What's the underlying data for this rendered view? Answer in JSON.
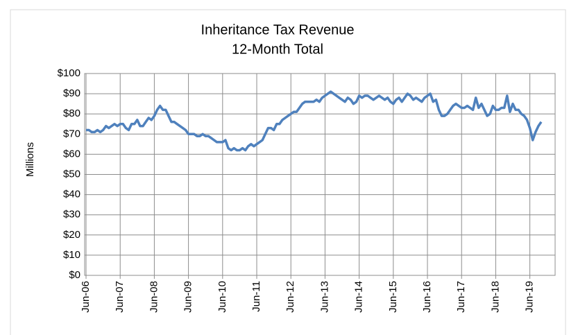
{
  "chart_data": {
    "type": "line",
    "title": "Inheritance Tax Revenue",
    "subtitle": "12-Month Total",
    "y_label": "Millions",
    "categories": [
      "Jun-06",
      null,
      null,
      null,
      null,
      null,
      null,
      null,
      null,
      null,
      null,
      null,
      "Jun-07",
      null,
      null,
      null,
      null,
      null,
      null,
      null,
      null,
      null,
      null,
      null,
      "Jun-08",
      null,
      null,
      null,
      null,
      null,
      null,
      null,
      null,
      null,
      null,
      null,
      "Jun-09",
      null,
      null,
      null,
      null,
      null,
      null,
      null,
      null,
      null,
      null,
      null,
      "Jun-10",
      null,
      null,
      null,
      null,
      null,
      null,
      null,
      null,
      null,
      null,
      null,
      "Jun-11",
      null,
      null,
      null,
      null,
      null,
      null,
      null,
      null,
      null,
      null,
      null,
      "Jun-12",
      null,
      null,
      null,
      null,
      null,
      null,
      null,
      null,
      null,
      null,
      null,
      "Jun-13",
      null,
      null,
      null,
      null,
      null,
      null,
      null,
      null,
      null,
      null,
      null,
      "Jun-14",
      null,
      null,
      null,
      null,
      null,
      null,
      null,
      null,
      null,
      null,
      null,
      "Jun-15",
      null,
      null,
      null,
      null,
      null,
      null,
      null,
      null,
      null,
      null,
      null,
      "Jun-16",
      null,
      null,
      null,
      null,
      null,
      null,
      null,
      null,
      null,
      null,
      null,
      "Jun-17",
      null,
      null,
      null,
      null,
      null,
      null,
      null,
      null,
      null,
      null,
      null,
      "Jun-18",
      null,
      null,
      null,
      null,
      null,
      null,
      null,
      null,
      null,
      null,
      null,
      "Jun-19",
      null,
      null,
      null,
      null
    ],
    "series": [
      {
        "name": "Inheritance Tax Revenue",
        "color": "#4f81bd",
        "values": [
          72,
          72,
          71,
          71,
          72,
          71,
          72,
          74,
          73,
          74,
          75,
          74,
          75,
          75,
          73,
          72,
          75,
          75,
          77,
          74,
          74,
          76,
          78,
          77,
          79,
          82,
          84,
          82,
          82,
          79,
          76,
          76,
          75,
          74,
          73,
          72,
          70,
          70,
          70,
          69,
          69,
          70,
          69,
          69,
          68,
          67,
          66,
          66,
          66,
          67,
          63,
          62,
          63,
          62,
          62,
          63,
          62,
          64,
          65,
          64,
          65,
          66,
          67,
          70,
          73,
          73,
          72,
          75,
          75,
          77,
          78,
          79,
          80,
          81,
          81,
          83,
          85,
          86,
          86,
          86,
          86,
          87,
          86,
          88,
          89,
          90,
          91,
          90,
          89,
          88,
          87,
          86,
          88,
          87,
          85,
          86,
          89,
          88,
          89,
          89,
          88,
          87,
          88,
          89,
          88,
          87,
          88,
          86,
          85,
          87,
          88,
          86,
          88,
          90,
          89,
          87,
          88,
          87,
          86,
          88,
          89,
          90,
          86,
          87,
          82,
          79,
          79,
          80,
          82,
          84,
          85,
          84,
          83,
          83,
          84,
          83,
          82,
          88,
          83,
          85,
          82,
          79,
          80,
          84,
          82,
          82,
          83,
          83,
          89,
          81,
          85,
          82,
          82,
          80,
          79,
          77,
          73,
          67,
          71,
          74,
          76
        ]
      }
    ],
    "ylim": [
      0,
      100
    ],
    "yticks": [
      {
        "value": 0,
        "label": "$0"
      },
      {
        "value": 10,
        "label": "$10"
      },
      {
        "value": 20,
        "label": "$20"
      },
      {
        "value": 30,
        "label": "$30"
      },
      {
        "value": 40,
        "label": "$40"
      },
      {
        "value": 50,
        "label": "$50"
      },
      {
        "value": 60,
        "label": "$60"
      },
      {
        "value": 70,
        "label": "$70"
      },
      {
        "value": 80,
        "label": "$80"
      },
      {
        "value": 90,
        "label": "$90"
      },
      {
        "value": 100,
        "label": "$100"
      }
    ],
    "grid": true
  }
}
